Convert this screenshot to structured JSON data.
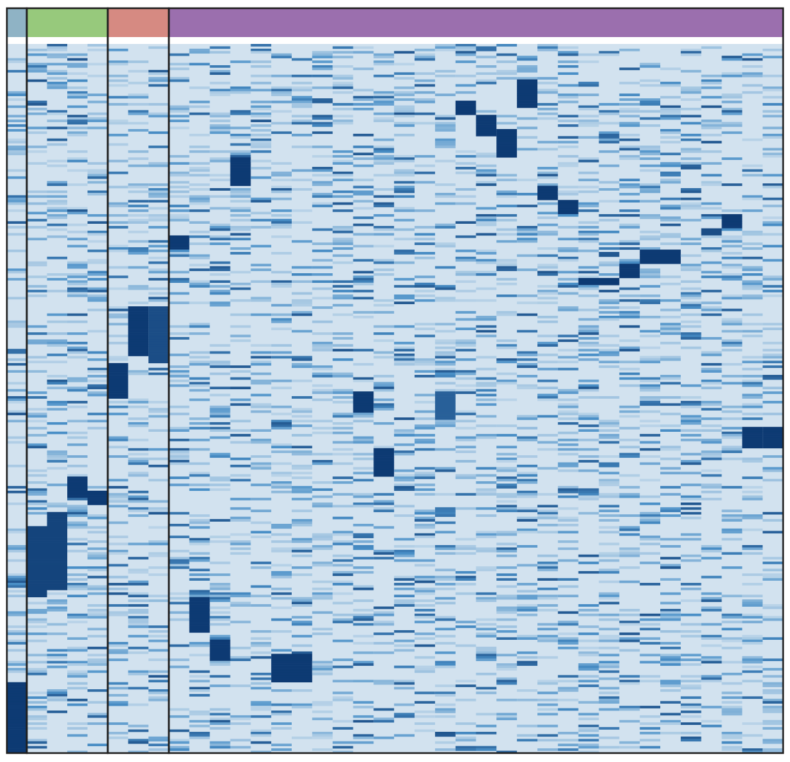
{
  "chart_data": {
    "type": "heatmap",
    "title": "",
    "xlabel": "",
    "ylabel": "",
    "legend": "none",
    "colorscale": {
      "low": "#d2e2ef",
      "mid": "#4a90c8",
      "high": "#0d3a73"
    },
    "grid": false,
    "n_rows": 100,
    "groups": [
      {
        "color": "#8fb3c5",
        "n_columns": 1
      },
      {
        "color": "#97c97c",
        "n_columns": 4
      },
      {
        "color": "#d68a82",
        "n_columns": 3
      },
      {
        "color": "#9b6fae",
        "n_columns": 30
      }
    ],
    "strong_blocks": [
      {
        "col": 0,
        "row_start": 90,
        "row_end": 100,
        "value": 1.0
      },
      {
        "col": 1,
        "row_start": 68,
        "row_end": 78,
        "value": 0.95
      },
      {
        "col": 2,
        "row_start": 66,
        "row_end": 77,
        "value": 0.95
      },
      {
        "col": 3,
        "row_start": 61,
        "row_end": 64,
        "value": 1.0
      },
      {
        "col": 4,
        "row_start": 63,
        "row_end": 65,
        "value": 1.0
      },
      {
        "col": 5,
        "row_start": 45,
        "row_end": 50,
        "value": 1.0
      },
      {
        "col": 6,
        "row_start": 37,
        "row_end": 44,
        "value": 1.0
      },
      {
        "col": 7,
        "row_start": 37,
        "row_end": 45,
        "value": 0.9
      },
      {
        "col": 8,
        "row_start": 27,
        "row_end": 29,
        "value": 1.0
      },
      {
        "col": 9,
        "row_start": 78,
        "row_end": 83,
        "value": 1.0
      },
      {
        "col": 10,
        "row_start": 84,
        "row_end": 87,
        "value": 1.0
      },
      {
        "col": 11,
        "row_start": 16,
        "row_end": 20,
        "value": 1.0
      },
      {
        "col": 13,
        "row_start": 86,
        "row_end": 90,
        "value": 1.0
      },
      {
        "col": 14,
        "row_start": 86,
        "row_end": 90,
        "value": 1.0
      },
      {
        "col": 17,
        "row_start": 49,
        "row_end": 52,
        "value": 1.0
      },
      {
        "col": 18,
        "row_start": 57,
        "row_end": 61,
        "value": 1.0
      },
      {
        "col": 21,
        "row_start": 49,
        "row_end": 53,
        "value": 0.8
      },
      {
        "col": 22,
        "row_start": 8,
        "row_end": 10,
        "value": 1.0
      },
      {
        "col": 23,
        "row_start": 10,
        "row_end": 13,
        "value": 1.0
      },
      {
        "col": 24,
        "row_start": 12,
        "row_end": 16,
        "value": 1.0
      },
      {
        "col": 25,
        "row_start": 5,
        "row_end": 9,
        "value": 1.0
      },
      {
        "col": 26,
        "row_start": 20,
        "row_end": 22,
        "value": 1.0
      },
      {
        "col": 27,
        "row_start": 22,
        "row_end": 24,
        "value": 1.0
      },
      {
        "col": 28,
        "row_start": 33,
        "row_end": 34,
        "value": 1.0
      },
      {
        "col": 29,
        "row_start": 33,
        "row_end": 34,
        "value": 1.0
      },
      {
        "col": 30,
        "row_start": 31,
        "row_end": 33,
        "value": 1.0
      },
      {
        "col": 31,
        "row_start": 29,
        "row_end": 31,
        "value": 1.0
      },
      {
        "col": 32,
        "row_start": 29,
        "row_end": 31,
        "value": 1.0
      },
      {
        "col": 34,
        "row_start": 26,
        "row_end": 27,
        "value": 0.9
      },
      {
        "col": 35,
        "row_start": 24,
        "row_end": 26,
        "value": 1.0
      },
      {
        "col": 36,
        "row_start": 54,
        "row_end": 57,
        "value": 1.0
      },
      {
        "col": 37,
        "row_start": 54,
        "row_end": 57,
        "value": 1.0
      }
    ]
  }
}
